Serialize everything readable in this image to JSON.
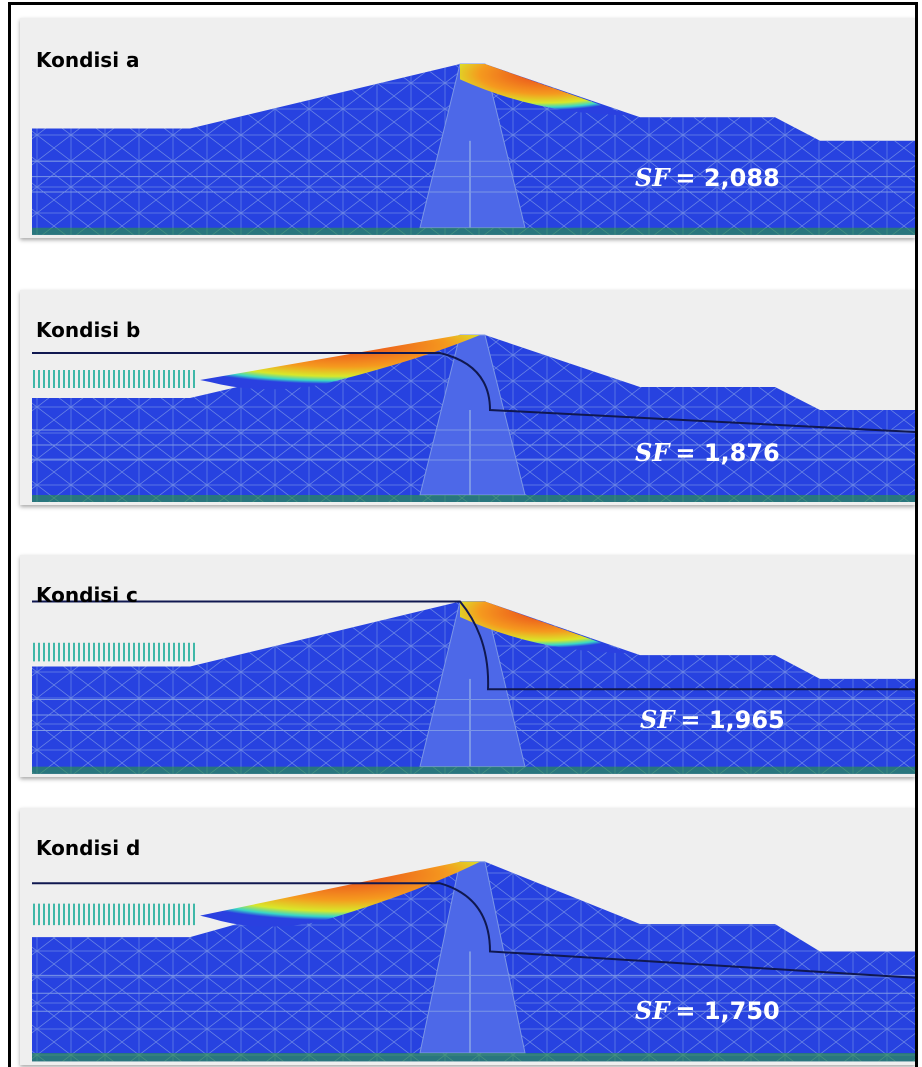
{
  "panels": [
    {
      "label": "Kondisi a",
      "sf_symbol": "SF",
      "sf_text": "= 2,088"
    },
    {
      "label": "Kondisi b",
      "sf_symbol": "SF",
      "sf_text": "= 1,876"
    },
    {
      "label": "Kondisi c",
      "sf_symbol": "SF",
      "sf_text": "= 1,965"
    },
    {
      "label": "Kondisi d",
      "sf_symbol": "SF",
      "sf_text": "= 1,750"
    }
  ]
}
